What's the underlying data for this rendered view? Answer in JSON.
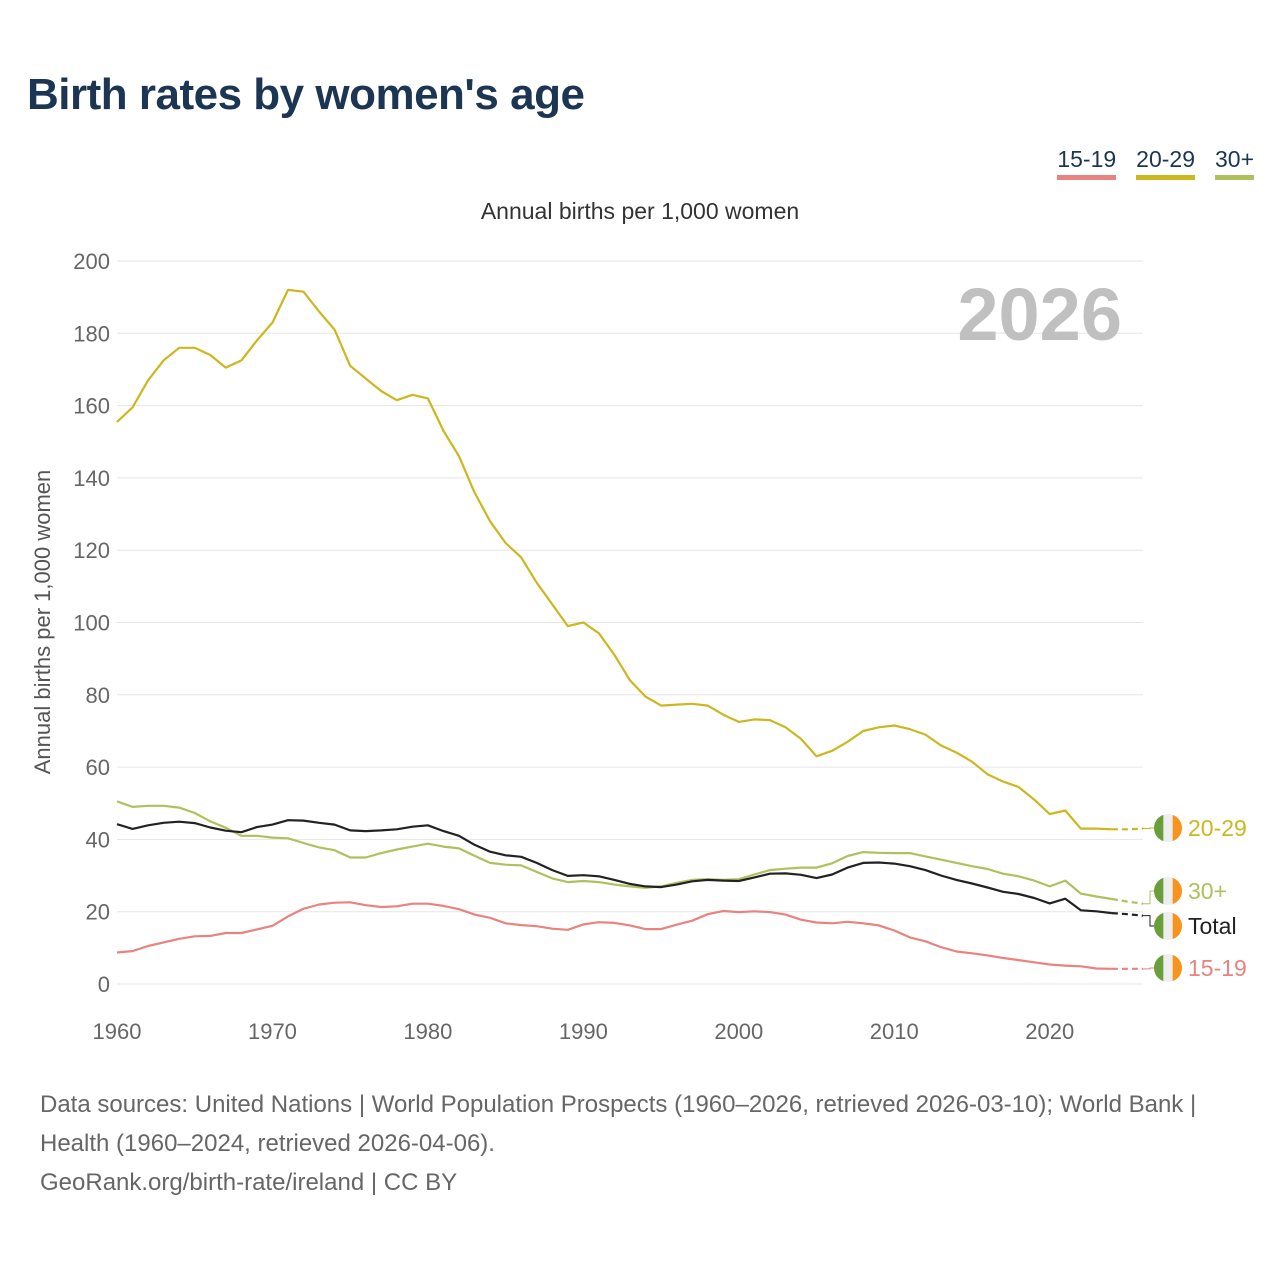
{
  "title": "Birth rates by women's age",
  "legend": [
    {
      "label": "15-19",
      "color": "#e8837f"
    },
    {
      "label": "20-29",
      "color": "#cdb71e"
    },
    {
      "label": "30+",
      "color": "#aec15c"
    }
  ],
  "watermark_year": "2026",
  "footer": {
    "sources": "Data sources: United Nations | World Population Prospects (1960–2026, retrieved 2026-03-10); World Bank | Health (1960–2024, retrieved 2026-04-06).",
    "link": "GeoRank.org/birth-rate/ireland | CC BY"
  },
  "flag_colors": [
    "#6a9e3a",
    "#eeeeee",
    "#f7941d"
  ],
  "chart_data": {
    "type": "line",
    "title": "Annual births per 1,000 women",
    "xlabel": "",
    "ylabel": "Annual births per 1,000 women",
    "xlim": [
      1960,
      2026
    ],
    "ylim": [
      0,
      200
    ],
    "x_ticks": [
      "1960",
      "1970",
      "1980",
      "1990",
      "2000",
      "2010",
      "2020"
    ],
    "y_ticks": [
      "0",
      "20",
      "40",
      "60",
      "80",
      "100",
      "120",
      "140",
      "160",
      "180",
      "200"
    ],
    "grid": true,
    "projection_start": 2024,
    "x_start": 1960,
    "series": [
      {
        "name": "20-29",
        "label": "20-29",
        "color": "#cdb71e",
        "values": [
          155.5,
          159.5,
          167,
          172.5,
          176,
          176,
          174,
          170.5,
          172.5,
          178,
          183,
          192,
          191.5,
          186,
          181,
          171,
          167.5,
          164,
          161.5,
          163,
          162,
          153,
          146,
          136,
          128,
          122,
          118,
          111,
          105,
          99,
          100,
          97,
          91,
          84,
          79.5,
          77,
          77.3,
          77.5,
          77,
          74.5,
          72.5,
          73.2,
          73,
          71,
          67.8,
          63,
          64.5,
          67,
          70,
          71,
          71.5,
          70.5,
          69,
          66,
          64,
          61.5,
          58,
          56,
          54.5,
          51,
          47,
          48,
          43,
          43,
          42.8,
          42.8,
          43
        ]
      },
      {
        "name": "30+",
        "label": "30+",
        "color": "#aec15c",
        "values": [
          50.5,
          49,
          49.3,
          49.3,
          48.8,
          47.3,
          45,
          43.2,
          41,
          41,
          40.5,
          40.3,
          39,
          37.8,
          37,
          35,
          35,
          36.2,
          37.2,
          38,
          38.8,
          38,
          37.5,
          35.5,
          33.5,
          33,
          32.8,
          31,
          29.2,
          28.2,
          28.5,
          28.2,
          27.5,
          27,
          26.6,
          27,
          28,
          28.8,
          29,
          28.8,
          29,
          30.3,
          31.5,
          31.9,
          32.2,
          32.2,
          33.4,
          35.4,
          36.5,
          36.3,
          36.2,
          36.2,
          35.3,
          34.4,
          33.5,
          32.6,
          31.8,
          30.5,
          29.8,
          28.6,
          27,
          28.6,
          25,
          24.2,
          23.5,
          22.8,
          22.2
        ]
      },
      {
        "name": "Total",
        "label": "Total",
        "color": "#222222",
        "values": [
          44.2,
          42.9,
          43.9,
          44.6,
          44.9,
          44.5,
          43.3,
          42.4,
          42,
          43.4,
          44.1,
          45.3,
          45.2,
          44.6,
          44.1,
          42.5,
          42.3,
          42.5,
          42.8,
          43.5,
          43.9,
          42.3,
          41,
          38.5,
          36.6,
          35.6,
          35.2,
          33.5,
          31.5,
          29.9,
          30.1,
          29.8,
          28.8,
          27.7,
          27,
          26.8,
          27.5,
          28.4,
          28.8,
          28.6,
          28.5,
          29.5,
          30.5,
          30.6,
          30.2,
          29.3,
          30.3,
          32.2,
          33.5,
          33.6,
          33.3,
          32.6,
          31.5,
          30,
          28.8,
          27.8,
          26.7,
          25.5,
          24.9,
          23.8,
          22.3,
          23.6,
          20.4,
          20.1,
          19.6,
          19.3,
          18.9
        ]
      },
      {
        "name": "15-19",
        "label": "15-19",
        "color": "#e8837f",
        "values": [
          8.7,
          9.1,
          10.5,
          11.5,
          12.5,
          13.2,
          13.3,
          14.1,
          14.1,
          15.1,
          16.1,
          18.7,
          20.8,
          22,
          22.5,
          22.6,
          21.8,
          21.3,
          21.5,
          22.2,
          22.2,
          21.6,
          20.7,
          19.2,
          18.3,
          16.8,
          16.3,
          16,
          15.3,
          15,
          16.5,
          17.1,
          16.9,
          16.2,
          15.2,
          15.2,
          16.4,
          17.5,
          19.3,
          20.2,
          19.9,
          20.1,
          19.9,
          19.2,
          17.8,
          17,
          16.8,
          17.2,
          16.8,
          16.2,
          14.8,
          12.9,
          11.8,
          10.2,
          9,
          8.5,
          7.9,
          7.2,
          6.6,
          6,
          5.4,
          5.1,
          4.9,
          4.3,
          4.2,
          4.2,
          4.2
        ]
      }
    ]
  }
}
